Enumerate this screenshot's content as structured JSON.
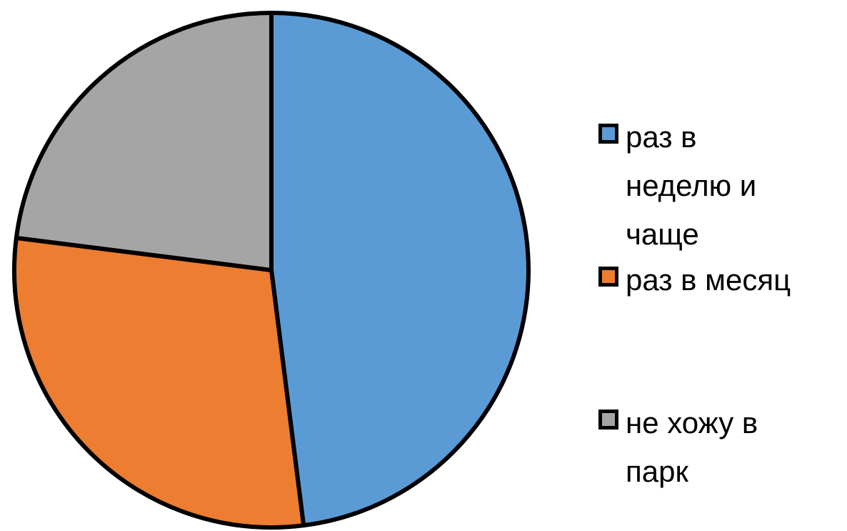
{
  "chart_data": {
    "type": "pie",
    "categories": [
      "раз в неделю и чаще",
      "раз в месяц",
      "не хожу в парк"
    ],
    "values": [
      48,
      29,
      23
    ],
    "colors": [
      "#5b9bd5",
      "#ed7d31",
      "#a5a5a5"
    ],
    "legend": "right"
  }
}
